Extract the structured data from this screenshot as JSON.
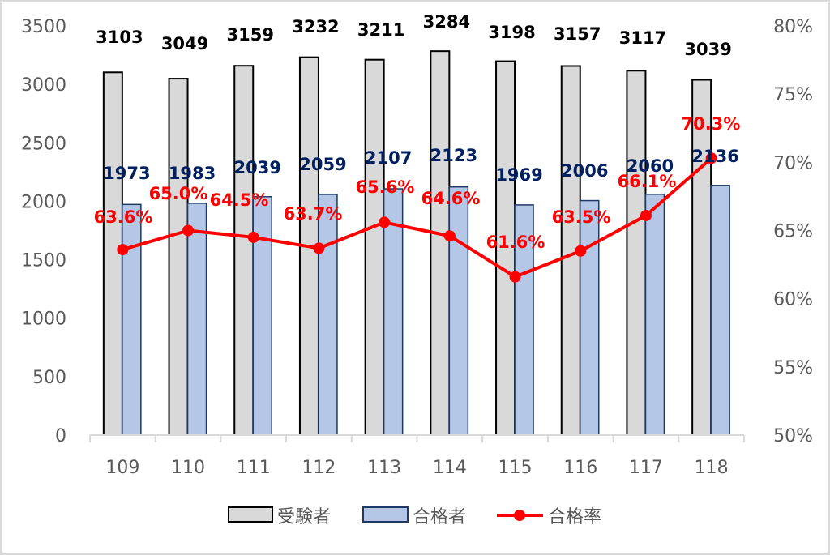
{
  "chart_data": {
    "type": "bar",
    "title": "",
    "xlabel": "",
    "ylabel": "",
    "categories": [
      "109",
      "110",
      "111",
      "112",
      "113",
      "114",
      "115",
      "116",
      "117",
      "118"
    ],
    "series": [
      {
        "name": "受験者",
        "type": "bar",
        "axis": "left",
        "color": "#d9d9d9",
        "border": "#000000",
        "label_color": "#000000",
        "values": [
          3103,
          3049,
          3159,
          3232,
          3211,
          3284,
          3198,
          3157,
          3117,
          3039
        ]
      },
      {
        "name": "合格者",
        "type": "bar",
        "axis": "left",
        "color": "#b4c7e7",
        "border": "#1f3864",
        "label_color": "#002060",
        "values": [
          1973,
          1983,
          2039,
          2059,
          2107,
          2123,
          1969,
          2006,
          2060,
          2136
        ]
      },
      {
        "name": "合格率",
        "type": "line",
        "axis": "right",
        "color": "#ff0000",
        "marker": "circle",
        "label_color": "#ff0000",
        "values": [
          63.6,
          65.0,
          64.5,
          63.7,
          65.6,
          64.6,
          61.6,
          63.5,
          66.1,
          70.3
        ],
        "labels": [
          "63.6%",
          "65.0%",
          "64.5%",
          "63.7%",
          "65.6%",
          "64.6%",
          "61.6%",
          "63.5%",
          "66.1%",
          "70.3%"
        ]
      }
    ],
    "ylim": [
      0,
      3500
    ],
    "yticks": [
      "0",
      "500",
      "1000",
      "1500",
      "2000",
      "2500",
      "3000",
      "3500"
    ],
    "y2lim": [
      50,
      80
    ],
    "y2ticks": [
      "50%",
      "55%",
      "60%",
      "65%",
      "70%",
      "75%",
      "80%"
    ],
    "grid": false,
    "legend_position": "bottom",
    "legend": [
      "受験者",
      "合格者",
      "合格率"
    ]
  }
}
